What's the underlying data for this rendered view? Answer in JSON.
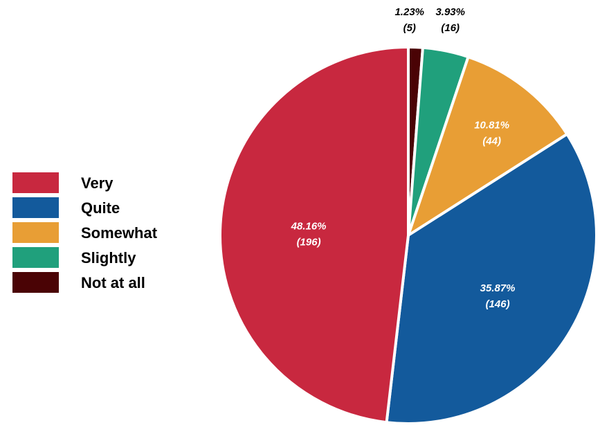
{
  "chart_data": {
    "type": "pie",
    "categories": [
      "Very",
      "Quite",
      "Somewhat",
      "Slightly",
      "Not at all"
    ],
    "values": [
      196,
      146,
      44,
      16,
      5
    ],
    "percent_labels": [
      "48.16%",
      "35.87%",
      "10.81%",
      "3.93%",
      "1.23%"
    ],
    "count_labels": [
      "(196)",
      "(146)",
      "(44)",
      "(16)",
      "(5)"
    ],
    "colors": [
      "#C8283F",
      "#135A9C",
      "#E89E35",
      "#20A07C",
      "#4A0305"
    ],
    "start_angle": "12 o'clock",
    "direction": "clockwise",
    "order_clockwise_from_top": [
      "Not at all",
      "Slightly",
      "Somewhat",
      "Quite",
      "Very"
    ],
    "legend_position": "left",
    "title": ""
  }
}
